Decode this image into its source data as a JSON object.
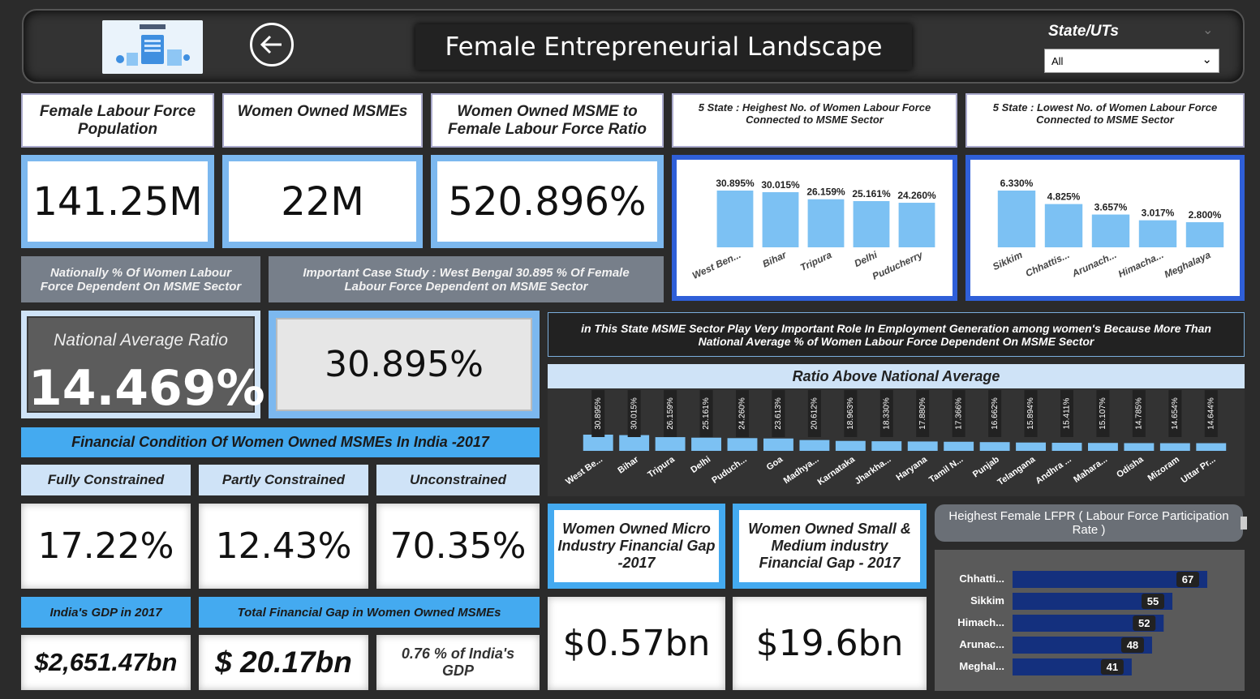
{
  "header": {
    "title": "Female Entrepreneurial Landscape",
    "filter_label": "State/UTs",
    "filter_value": "All"
  },
  "kpis": {
    "labour_force_label": "Female Labour Force Population",
    "labour_force_value": "141.25M",
    "msme_label": "Women Owned MSMEs",
    "msme_value": "22M",
    "ratio_label": "Women Owned MSME to Female Labour Force Ratio",
    "ratio_value": "520.896%",
    "top5_label": "5 State : Heighest No. of Women Labour Force Connected to MSME Sector",
    "bottom5_label": "5 State : Lowest No. of Women Labour Force Connected to MSME Sector"
  },
  "nationally_label": "Nationally % Of Women Labour Force Dependent On MSME Sector",
  "case_study_label": "Important Case Study :  West Bengal 30.895 %  Of  Female Labour Force Dependent on MSME Sector",
  "national_avg_label": "National Average Ratio",
  "national_avg_value": "14.469%",
  "case_value": "30.895%",
  "note_text": "in This State MSME Sector Play Very Important Role In Employment Generation among women's Because  More Than National Average % of Women Labour Force Dependent On MSME Sector",
  "ratio_above_title": "Ratio Above National Average",
  "financial": {
    "title": "Financial Condition Of Women Owned MSMEs In India -2017",
    "fully_label": "Fully Constrained",
    "fully_value": "17.22%",
    "partly_label": "Partly Constrained",
    "partly_value": "12.43%",
    "uncon_label": "Unconstrained",
    "uncon_value": "70.35%",
    "gdp_label": "India's GDP in 2017",
    "gdp_value": "$2,651.47bn",
    "gap_label": "Total Financial Gap in Women Owned MSMEs",
    "gap_value": "$ 20.17bn",
    "gap_pct": "0.76 % of India's GDP"
  },
  "gaps": {
    "micro_label": "Women Owned Micro Industry Financial Gap -2017",
    "micro_value": "$0.57bn",
    "small_label": "Women Owned Small & Medium industry Financial Gap - 2017",
    "small_value": "$19.6bn"
  },
  "lfpr_title": "Heighest Female LFPR ( Labour Force Participation Rate )",
  "colors": {
    "accent": "#44aaf0",
    "bar": "#7cc1f3",
    "lfpr_bar": "#14307e",
    "dark_bar": "#14307e"
  },
  "chart_data": [
    {
      "type": "bar",
      "categories": [
        "West Ben...",
        "Bihar",
        "Tripura",
        "Delhi",
        "Puducherry"
      ],
      "values": [
        30.895,
        30.015,
        26.159,
        25.161,
        24.26
      ],
      "labels": [
        "30.895%",
        "30.015%",
        "26.159%",
        "25.161%",
        "24.260%"
      ]
    },
    {
      "type": "bar",
      "categories": [
        "Sikkim",
        "Chhattis...",
        "Arunach...",
        "Himacha...",
        "Meghalaya"
      ],
      "values": [
        6.33,
        4.825,
        3.657,
        3.017,
        2.8
      ],
      "labels": [
        "6.330%",
        "4.825%",
        "3.657%",
        "3.017%",
        "2.800%"
      ]
    },
    {
      "type": "bar",
      "title": "Ratio Above National Average",
      "categories": [
        "West Be...",
        "Bihar",
        "Tripura",
        "Delhi",
        "Puduch...",
        "Goa",
        "Madhya...",
        "Karnataka",
        "Jharkha...",
        "Haryana",
        "Tamil N...",
        "Punjab",
        "Telangana",
        "Andhra ...",
        "Mahara...",
        "Odisha",
        "Mizoram",
        "Uttar Pr..."
      ],
      "values": [
        30.895,
        30.015,
        26.159,
        25.161,
        24.26,
        23.613,
        20.612,
        18.963,
        18.33,
        17.88,
        17.366,
        16.662,
        15.894,
        15.411,
        15.107,
        14.785,
        14.654,
        14.644
      ],
      "labels": [
        "30.895%",
        "30.015%",
        "26.159%",
        "25.161%",
        "24.260%",
        "23.613%",
        "20.612%",
        "18.963%",
        "18.330%",
        "17.880%",
        "17.366%",
        "16.662%",
        "15.894%",
        "15.411%",
        "15.107%",
        "14.785%",
        "14.654%",
        "14.644%"
      ]
    },
    {
      "type": "bar",
      "orientation": "horizontal",
      "title": "Heighest Female LFPR ( Labour Force Participation Rate )",
      "categories": [
        "Chhatti...",
        "Sikkim",
        "Himach...",
        "Arunac...",
        "Meghal..."
      ],
      "values": [
        67,
        55,
        52,
        48,
        41
      ]
    }
  ]
}
